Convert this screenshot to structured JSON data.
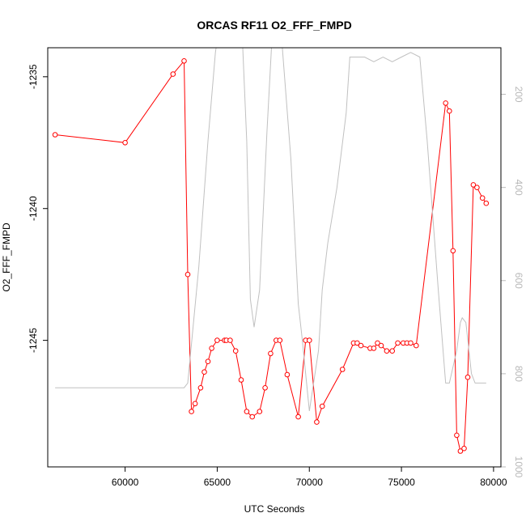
{
  "chart_data": {
    "type": "line",
    "title": "ORCAS RF11 O2_FFF_FMPD",
    "xlabel": "UTC Seconds",
    "ylabel": "O2_FFF_FMPD",
    "xlim": [
      55800,
      80400
    ],
    "ylim": [
      -1249.8,
      -1233.9
    ],
    "y2lim": [
      1000,
      100
    ],
    "x_ticks": [
      60000,
      65000,
      70000,
      75000,
      80000
    ],
    "x_tick_labels": [
      "60000",
      "65000",
      "70000",
      "75000",
      "80000"
    ],
    "y_ticks": [
      -1235,
      -1240,
      -1245
    ],
    "y_tick_labels": [
      "-1235",
      "-1240",
      "-1245"
    ],
    "y2_ticks": [
      200,
      400,
      600,
      800,
      1000
    ],
    "y2_tick_labels": [
      "200",
      "400",
      "600",
      "800",
      "1000"
    ],
    "grid": false,
    "series": [
      {
        "color": "#ff0000",
        "marker": "circle",
        "x": [
          56200,
          60000,
          62600,
          63200,
          63400,
          63600,
          63800,
          64100,
          64300,
          64500,
          64700,
          65000,
          65400,
          65500,
          65700,
          66000,
          66300,
          66600,
          66900,
          67300,
          67600,
          67900,
          68200,
          68400,
          68800,
          69400,
          69800,
          70000,
          70400,
          70700,
          71800,
          72400,
          72600,
          72800,
          73300,
          73500,
          73700,
          73900,
          74200,
          74500,
          74800,
          75100,
          75300,
          75500,
          75800,
          77400,
          77600,
          77800,
          78000,
          78200,
          78400,
          78600,
          78900,
          79100,
          79400,
          79600
        ],
        "y": [
          -1237.2,
          -1237.5,
          -1234.9,
          -1234.4,
          -1242.5,
          -1247.7,
          -1247.4,
          -1246.8,
          -1246.2,
          -1245.8,
          -1245.3,
          -1245.0,
          -1245.0,
          -1245.0,
          -1245.0,
          -1245.4,
          -1246.5,
          -1247.7,
          -1247.9,
          -1247.7,
          -1246.8,
          -1245.5,
          -1245.0,
          -1245.0,
          -1246.3,
          -1247.9,
          -1245.0,
          -1245.0,
          -1248.1,
          -1247.5,
          -1246.1,
          -1245.1,
          -1245.1,
          -1245.2,
          -1245.3,
          -1245.3,
          -1245.1,
          -1245.2,
          -1245.4,
          -1245.4,
          -1245.1,
          -1245.1,
          -1245.1,
          -1245.1,
          -1245.2,
          -1236.0,
          -1236.3,
          -1241.6,
          -1248.6,
          -1249.2,
          -1249.1,
          -1246.4,
          -1239.1,
          -1239.2,
          -1239.6,
          -1239.8
        ]
      },
      {
        "color": "#c0c0c0",
        "axis": "right",
        "x": [
          56200,
          63200,
          63400,
          64000,
          64500,
          64900,
          65200,
          65500,
          66300,
          66600,
          66800,
          67000,
          67300,
          67700,
          68000,
          68200,
          68400,
          69000,
          69400,
          69600,
          70000,
          70500,
          70700,
          71000,
          71500,
          72000,
          72200,
          72400,
          73000,
          73500,
          74000,
          74500,
          75000,
          75500,
          76000,
          76400,
          77000,
          77400,
          77600,
          78000,
          78200,
          78300,
          78500,
          78800,
          79000,
          79200,
          79600
        ],
        "y": [
          830,
          830,
          820,
          570,
          300,
          110,
          30,
          10,
          20,
          300,
          640,
          700,
          620,
          280,
          60,
          20,
          30,
          340,
          650,
          720,
          880,
          750,
          620,
          520,
          400,
          240,
          120,
          120,
          120,
          130,
          120,
          130,
          120,
          110,
          120,
          300,
          620,
          820,
          820,
          750,
          690,
          680,
          690,
          800,
          820,
          820,
          820
        ]
      }
    ]
  }
}
